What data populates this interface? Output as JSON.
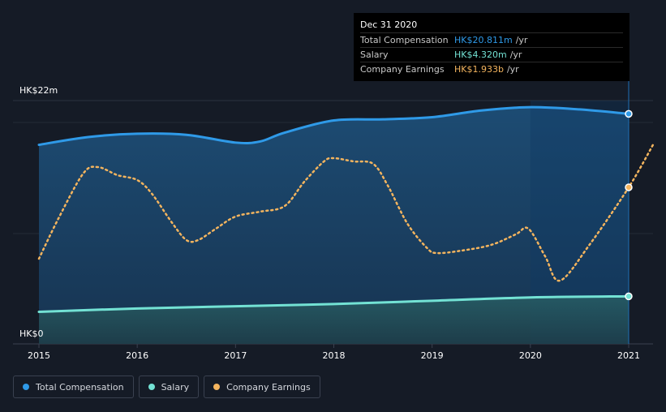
{
  "tooltip": {
    "date": "Dec 31 2020",
    "rows": [
      {
        "label": "Total Compensation",
        "value": "HK$20.811m",
        "unit": "/yr",
        "color": "#2f9ae8"
      },
      {
        "label": "Salary",
        "value": "HK$4.320m",
        "unit": "/yr",
        "color": "#73e2d4"
      },
      {
        "label": "Company Earnings",
        "value": "HK$1.933b",
        "unit": "/yr",
        "color": "#f3b45e"
      }
    ]
  },
  "legend": [
    {
      "label": "Total Compensation",
      "color": "#2f9ae8"
    },
    {
      "label": "Salary",
      "color": "#73e2d4"
    },
    {
      "label": "Company Earnings",
      "color": "#f3b45e"
    }
  ],
  "chart_data": {
    "type": "area",
    "y_top_label": "HK$22m",
    "y_bottom_label": "HK$0",
    "ylim": [
      0,
      22
    ],
    "x_ticks": [
      "2015",
      "2016",
      "2017",
      "2018",
      "2019",
      "2020",
      "2021"
    ],
    "x_tick_values": [
      2015,
      2016,
      2017,
      2018,
      2019,
      2020,
      2021
    ],
    "xlim": [
      2014.75,
      2021.25
    ],
    "series": [
      {
        "name": "Total Compensation",
        "color": "#2f9ae8",
        "x": [
          2015.0,
          2015.5,
          2016.0,
          2016.5,
          2017.0,
          2017.25,
          2017.5,
          2018.0,
          2018.5,
          2019.0,
          2019.5,
          2020.0,
          2020.5,
          2021.0
        ],
        "values": [
          18.0,
          18.7,
          19.0,
          18.9,
          18.2,
          18.3,
          19.1,
          20.2,
          20.3,
          20.5,
          21.1,
          21.4,
          21.2,
          20.8
        ]
      },
      {
        "name": "Salary",
        "color": "#73e2d4",
        "x": [
          2015.0,
          2016.0,
          2017.0,
          2018.0,
          2019.0,
          2020.0,
          2021.0
        ],
        "values": [
          2.9,
          3.2,
          3.4,
          3.6,
          3.9,
          4.2,
          4.3
        ]
      },
      {
        "name": "Company Earnings",
        "color": "#f3b45e",
        "unit_note": "HK$b",
        "x": [
          2015.0,
          2015.2,
          2015.45,
          2015.6,
          2015.8,
          2016.0,
          2016.15,
          2016.35,
          2016.5,
          2016.62,
          2016.8,
          2017.0,
          2017.25,
          2017.5,
          2017.7,
          2017.9,
          2018.0,
          2018.2,
          2018.4,
          2018.55,
          2018.75,
          2018.95,
          2019.05,
          2019.3,
          2019.6,
          2019.85,
          2019.98,
          2020.15,
          2020.3,
          2020.6,
          2021.0,
          2021.25
        ],
        "values": [
          1.05,
          1.55,
          2.1,
          2.18,
          2.08,
          2.02,
          1.85,
          1.5,
          1.28,
          1.28,
          1.42,
          1.57,
          1.63,
          1.7,
          2.0,
          2.25,
          2.29,
          2.25,
          2.22,
          1.95,
          1.48,
          1.18,
          1.12,
          1.15,
          1.22,
          1.35,
          1.42,
          1.08,
          0.78,
          1.22,
          1.93,
          2.46
        ]
      }
    ],
    "highlight_x": 2021.0
  }
}
